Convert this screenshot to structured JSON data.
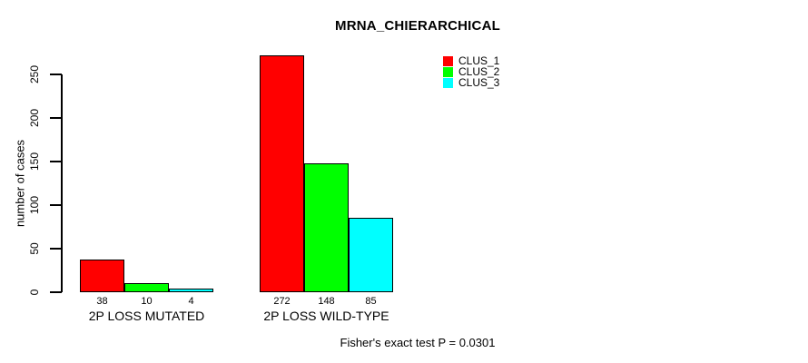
{
  "chart_data": {
    "type": "bar",
    "title": "MRNA_CHIERARCHICAL",
    "ylabel": "number of cases",
    "xlabel": "",
    "categories": [
      "2P LOSS MUTATED",
      "2P LOSS WILD-TYPE"
    ],
    "series": [
      {
        "name": "CLUS_1",
        "color": "#ff0000",
        "values": [
          38,
          272
        ]
      },
      {
        "name": "CLUS_2",
        "color": "#00ff00",
        "values": [
          10,
          148
        ]
      },
      {
        "name": "CLUS_3",
        "color": "#00ffff",
        "values": [
          4,
          85
        ]
      }
    ],
    "bar_value_labels": [
      [
        38,
        10,
        4
      ],
      [
        272,
        148,
        85
      ]
    ],
    "yticks": [
      0,
      50,
      100,
      150,
      200,
      250
    ],
    "ylim": [
      0,
      280
    ],
    "grid": false,
    "legend_position": "top-right",
    "bar_border_color": "#000000",
    "annotation": "Fisher's exact test P = 0.0301"
  }
}
